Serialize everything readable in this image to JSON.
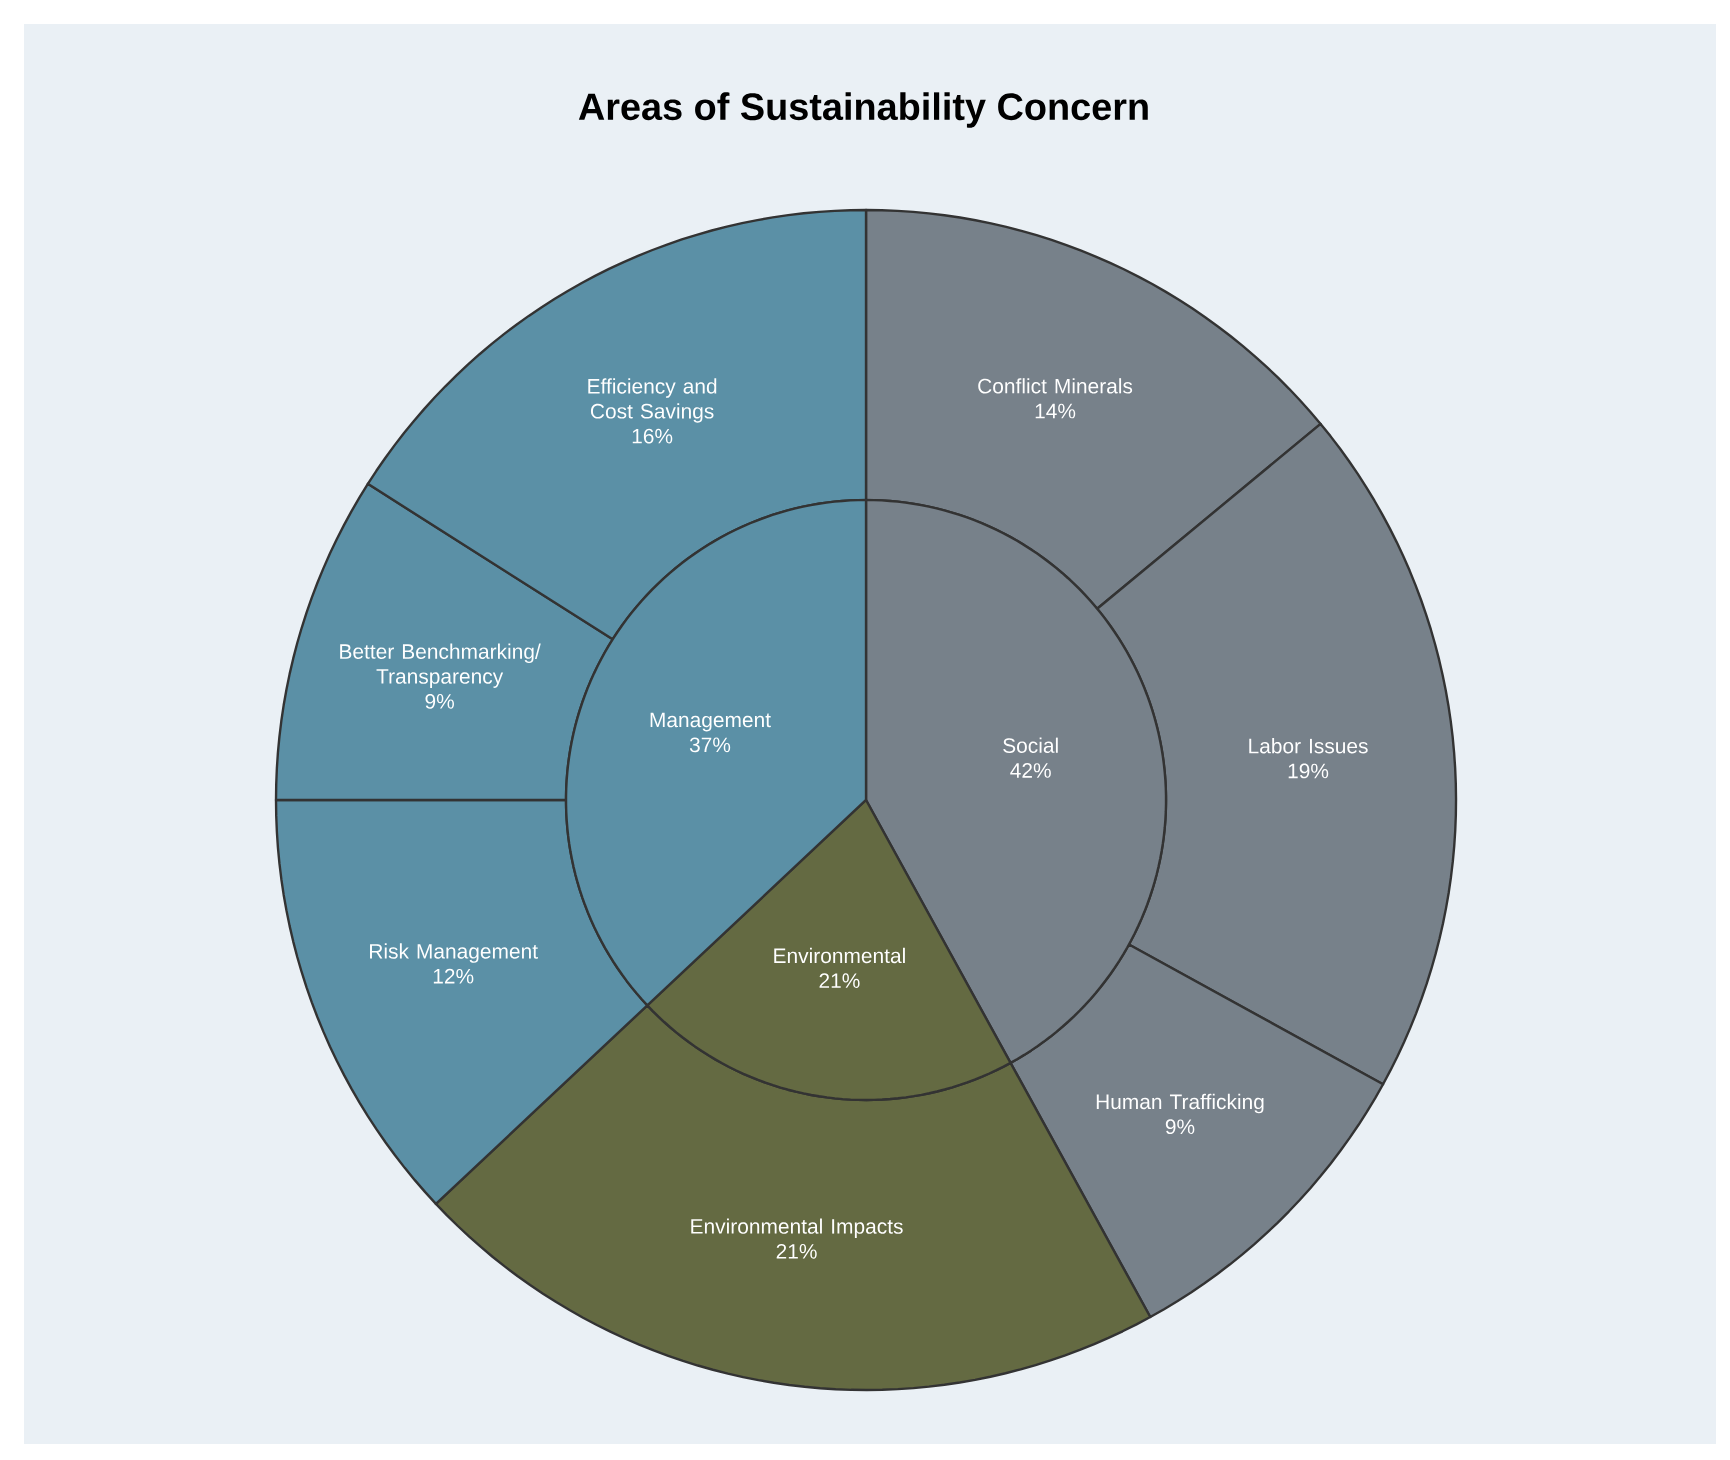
{
  "chart_data": [
    {
      "type": "pie",
      "title": "Areas of Sustainability Concern",
      "categories": [
        "Social",
        "Environmental",
        "Management"
      ],
      "values": [
        42,
        21,
        37
      ],
      "value_labels": [
        "42%",
        "21%",
        "37%"
      ],
      "colors": [
        "#77818a",
        "#646a42",
        "#5b90a6"
      ]
    },
    {
      "type": "donut",
      "categories": [
        "Conflict Minerals",
        "Labor Issues",
        "Human Trafficking",
        "Environmental Impacts",
        "Risk Management",
        "Better Benchmarking/ Transparency",
        "Efficiency and Cost Savings"
      ],
      "values": [
        14,
        19,
        9,
        21,
        12,
        9,
        16
      ],
      "value_labels": [
        "14%",
        "19%",
        "9%",
        "21%",
        "12%",
        "9%",
        "16%"
      ],
      "colors": [
        "#77818a",
        "#77818a",
        "#77818a",
        "#646a42",
        "#5b90a6",
        "#5b90a6",
        "#5b90a6"
      ]
    }
  ]
}
